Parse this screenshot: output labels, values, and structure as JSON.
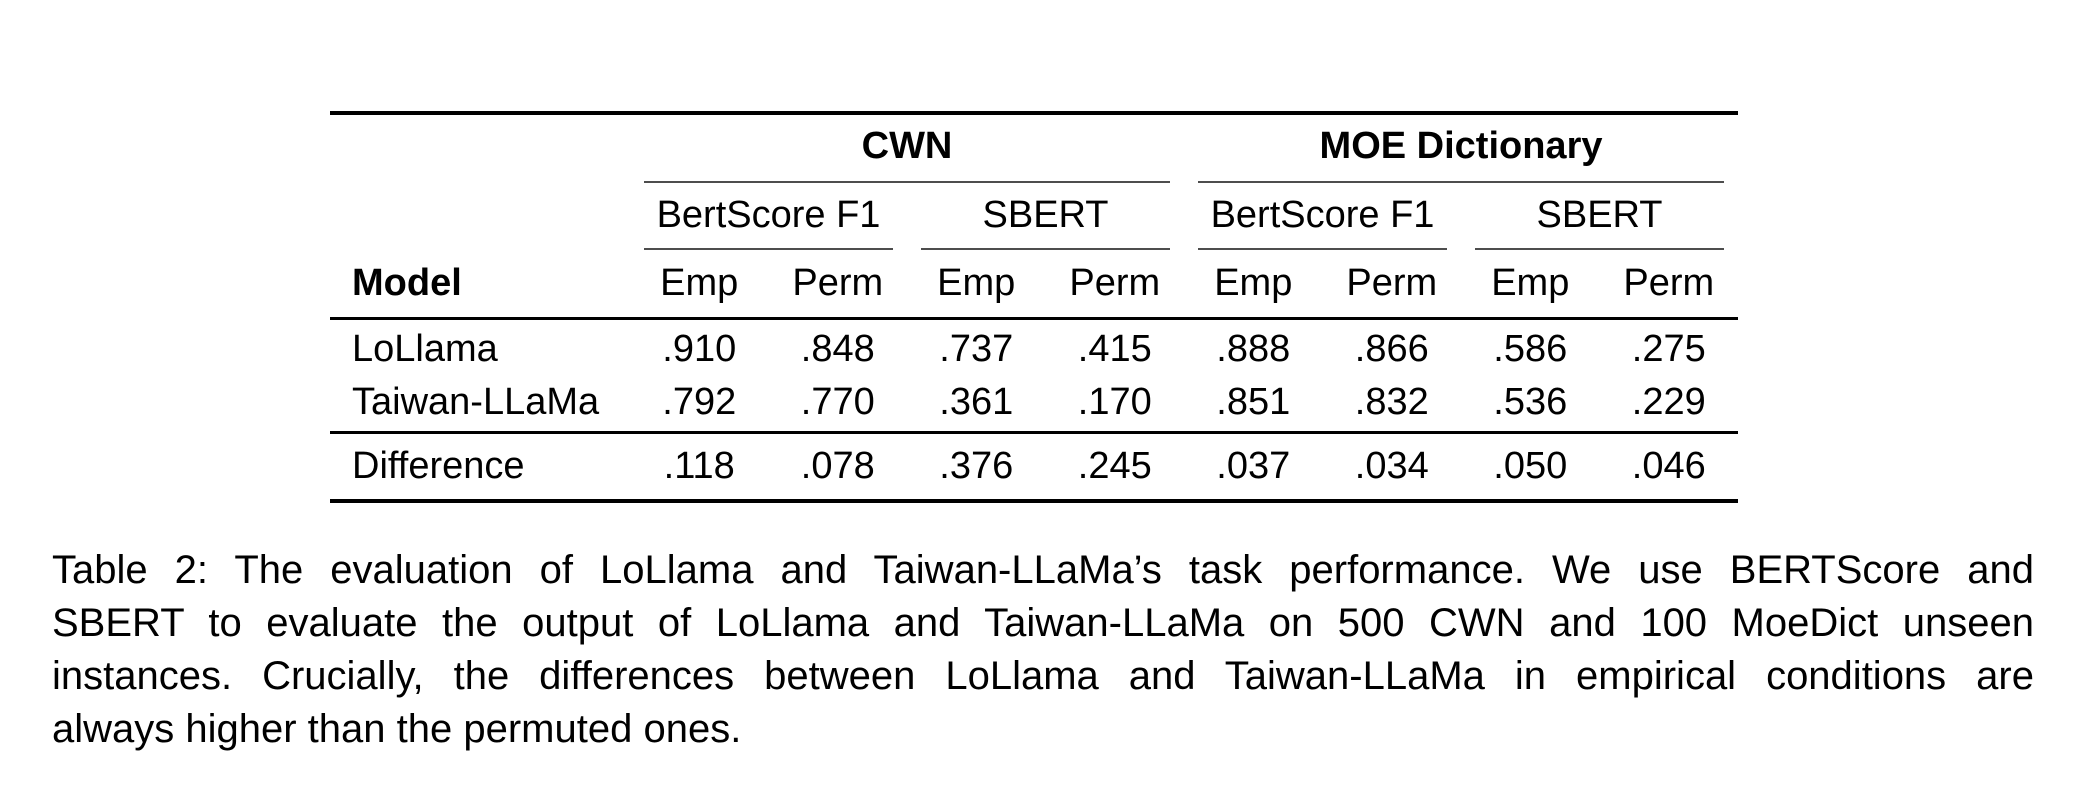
{
  "table": {
    "groups": [
      {
        "label": "CWN"
      },
      {
        "label": "MOE Dictionary"
      }
    ],
    "subgroups": [
      "BertScore F1",
      "SBERT",
      "BertScore F1",
      "SBERT"
    ],
    "model_header": "Model",
    "condition_headers": [
      "Emp",
      "Perm",
      "Emp",
      "Perm",
      "Emp",
      "Perm",
      "Emp",
      "Perm"
    ],
    "rows": [
      {
        "model": "LoLlama",
        "values": [
          ".910",
          ".848",
          ".737",
          ".415",
          ".888",
          ".866",
          ".586",
          ".275"
        ]
      },
      {
        "model": "Taiwan-LLaMa",
        "values": [
          ".792",
          ".770",
          ".361",
          ".170",
          ".851",
          ".832",
          ".536",
          ".229"
        ]
      }
    ],
    "difference_row": {
      "model": "Difference",
      "values": [
        ".118",
        ".078",
        ".376",
        ".245",
        ".037",
        ".034",
        ".050",
        ".046"
      ]
    }
  },
  "caption": {
    "lines": [
      "Table 2: The evaluation of LoLlama and Taiwan-LLaMa’s task performance. We use BERTScore and",
      "SBERT to evaluate the output of LoLlama and Taiwan-LLaMa on 500 CWN and 100 MoeDict unseen",
      "instances. Crucially, the differences between LoLlama and Taiwan-LLaMa in empirical conditions are",
      "always higher than the permuted ones."
    ]
  },
  "colors": {
    "background": "#ffffff",
    "text": "#000000",
    "rule_heavy": "#000000",
    "rule_light": "#4d4d4d"
  }
}
